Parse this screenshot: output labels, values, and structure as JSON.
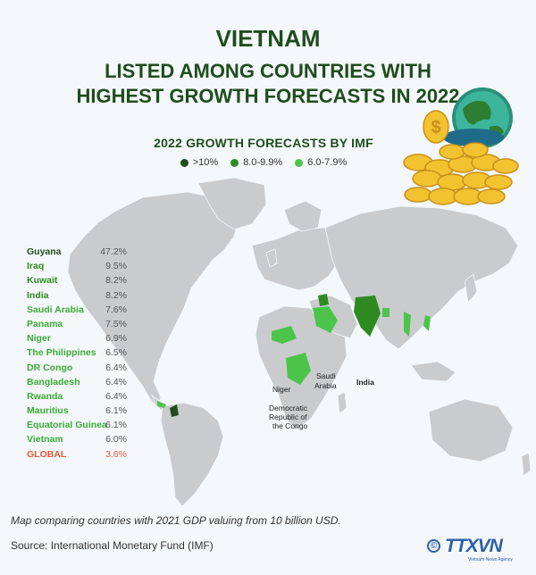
{
  "header": {
    "title_line1": "VIETNAM",
    "title_line2": "LISTED AMONG COUNTRIES WITH",
    "title_line3": "HIGHEST GROWTH FORECASTS IN 2022"
  },
  "legend_colors": {
    "above_10": "#1f4d1e",
    "8_to_9_9": "#2e8b22",
    "6_to_7_9": "#4cc44a",
    "global": "#e05a3a",
    "land": "#c9cbcd"
  },
  "chart_data": {
    "type": "table",
    "title": "2022 GROWTH FORECASTS BY IMF",
    "legend": [
      {
        "label": ">10%",
        "color": "#1f4d1e"
      },
      {
        "label": "8.0-9.9%",
        "color": "#2e8b22"
      },
      {
        "label": "6.0-7.9%",
        "color": "#4cc44a"
      }
    ],
    "rows": [
      {
        "country": "Guyana",
        "value": "47.2%",
        "group": "c1"
      },
      {
        "country": "Iraq",
        "value": "9.5%",
        "group": "c2"
      },
      {
        "country": "Kuwait",
        "value": "8.2%",
        "group": "c2"
      },
      {
        "country": "India",
        "value": "8.2%",
        "group": "c2"
      },
      {
        "country": "Saudi Arabia",
        "value": "7.6%",
        "group": "c3"
      },
      {
        "country": "Panama",
        "value": "7.5%",
        "group": "c3"
      },
      {
        "country": "Niger",
        "value": "6.9%",
        "group": "c3"
      },
      {
        "country": "The Philippines",
        "value": "6.5%",
        "group": "c3"
      },
      {
        "country": "DR Congo",
        "value": "6.4%",
        "group": "c3"
      },
      {
        "country": "Bangladesh",
        "value": "6.4%",
        "group": "c3"
      },
      {
        "country": "Rwanda",
        "value": "6.4%",
        "group": "c3"
      },
      {
        "country": "Mauritius",
        "value": "6.1%",
        "group": "c3"
      },
      {
        "country": "Equatorial Guinea",
        "value": "6.1%",
        "group": "c3"
      },
      {
        "country": "Vietnam",
        "value": "6.0%",
        "group": "c3"
      },
      {
        "country": "GLOBAL",
        "value": "3.6%",
        "group": "cg"
      }
    ]
  },
  "map_labels": {
    "niger": "Niger",
    "saudi_line1": "Saudi",
    "saudi_line2": "Arabia",
    "india": "India",
    "drc_line1": "Democratic",
    "drc_line2": "Republic of",
    "drc_line3": "the Congo"
  },
  "footer": {
    "note": "Map comparing countries with 2021 GDP valuing from 10 billion USD.",
    "source": "Source: International Monetary Fund (IMF)",
    "logo_text": "TTXVN",
    "logo_sub": "Vietnam News Agency"
  }
}
